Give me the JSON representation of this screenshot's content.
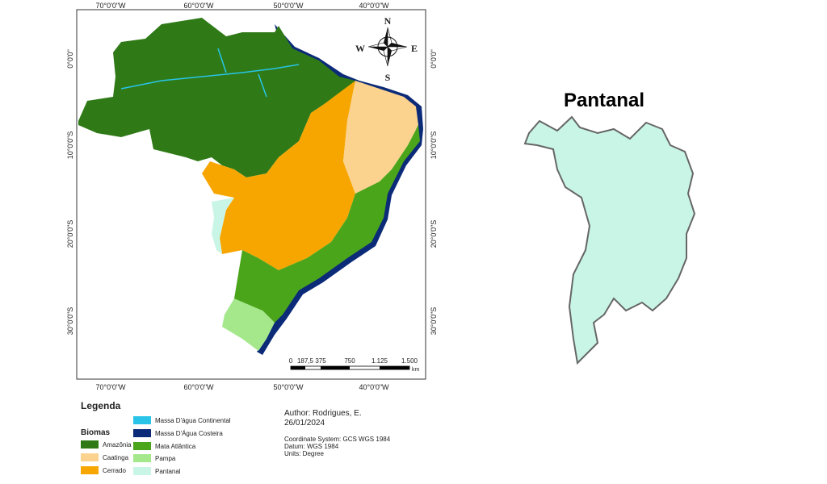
{
  "map": {
    "longitude_labels": [
      "70°0'0\"W",
      "60°0'0\"W",
      "50°0'0\"W",
      "40°0'0\"W"
    ],
    "latitude_labels": [
      "0°0'0\"",
      "10°0'0\"S",
      "20°0'0\"S",
      "30°0'0\"S"
    ],
    "compass": {
      "north": "N",
      "south": "S",
      "east": "E",
      "west": "W"
    },
    "scale_bar": {
      "labels": [
        "0",
        "187,5",
        "375",
        "750",
        "1.125",
        "1.500"
      ],
      "unit": "km"
    },
    "legend": {
      "title": "Legenda",
      "group_title": "Biomas",
      "items": [
        {
          "label": "Amazônia",
          "color": "#2f7a17"
        },
        {
          "label": "Caatinga",
          "color": "#fbd38f"
        },
        {
          "label": "Cerrado",
          "color": "#f7a600"
        },
        {
          "label": "Massa D'água Continental",
          "color": "#29c4e8"
        },
        {
          "label": "Massa D'Água Costeira",
          "color": "#0b2a78"
        },
        {
          "label": "Mata Atlântica",
          "color": "#4ba51b"
        },
        {
          "label": "Pampa",
          "color": "#a5e88c"
        },
        {
          "label": "Pantanal",
          "color": "#c9f5e7"
        }
      ]
    },
    "credits": {
      "author": "Author: Rodrigues, E.",
      "date": "26/01/2024",
      "coordinate_system": "Coordinate System: GCS WGS 1984",
      "datum": "Datum: WGS 1984",
      "units": "Units: Degree"
    }
  },
  "inset": {
    "title": "Pantanal"
  }
}
